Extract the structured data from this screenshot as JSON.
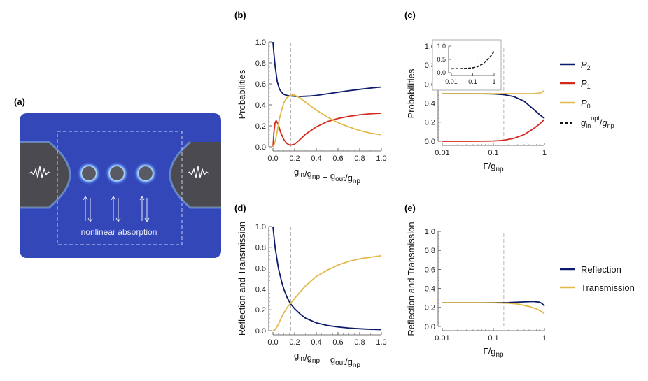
{
  "colors": {
    "p2": "#0b1a6b",
    "p1": "#d42a1e",
    "p0": "#e2b94a",
    "ref": "#0b1a6b",
    "trans": "#e2b94a",
    "schematic_bg": "#3347b8"
  },
  "panel_a": {
    "label": "(a)",
    "caption": "nonlinear absorption",
    "icons": [
      "left-wavepacket-icon",
      "right-wavepacket-icon",
      "emitter-icon",
      "up-down-arrows-icon"
    ]
  },
  "panel_labels": {
    "b": "(b)",
    "c": "(c)",
    "d": "(d)",
    "e": "(e)"
  },
  "chart_data": [
    {
      "id": "b",
      "type": "line",
      "xlabel": "g_in/g_np = g_out/g_np",
      "ylabel": "Probabilities",
      "xlim": [
        0,
        1
      ],
      "ylim": [
        0,
        1
      ],
      "xticks": [
        "0.0",
        "0.2",
        "0.4",
        "0.6",
        "0.8",
        "1.0"
      ],
      "yticks": [
        "0.0",
        "0.2",
        "0.4",
        "0.6",
        "0.8",
        "1.0"
      ],
      "vline": 0.165,
      "series": [
        {
          "name": "P2",
          "color": "#0b1a6b",
          "x": [
            0,
            0.01,
            0.02,
            0.04,
            0.06,
            0.08,
            0.1,
            0.13,
            0.16,
            0.2,
            0.25,
            0.3,
            0.35,
            0.4,
            0.5,
            0.6,
            0.7,
            0.8,
            0.9,
            1.0
          ],
          "y": [
            1.0,
            0.88,
            0.77,
            0.62,
            0.55,
            0.52,
            0.5,
            0.49,
            0.485,
            0.482,
            0.48,
            0.482,
            0.485,
            0.49,
            0.505,
            0.52,
            0.535,
            0.548,
            0.56,
            0.57
          ]
        },
        {
          "name": "P1",
          "color": "#d42a1e",
          "x": [
            0,
            0.01,
            0.02,
            0.03,
            0.05,
            0.07,
            0.1,
            0.13,
            0.16,
            0.2,
            0.25,
            0.3,
            0.4,
            0.5,
            0.6,
            0.7,
            0.8,
            0.9,
            1.0
          ],
          "y": [
            0,
            0.15,
            0.23,
            0.25,
            0.21,
            0.14,
            0.07,
            0.03,
            0.015,
            0.025,
            0.07,
            0.12,
            0.19,
            0.24,
            0.27,
            0.29,
            0.305,
            0.315,
            0.32
          ]
        },
        {
          "name": "P0",
          "color": "#e2b94a",
          "x": [
            0,
            0.01,
            0.02,
            0.04,
            0.06,
            0.08,
            0.1,
            0.13,
            0.16,
            0.18,
            0.2,
            0.25,
            0.3,
            0.4,
            0.5,
            0.6,
            0.7,
            0.8,
            0.9,
            1.0
          ],
          "y": [
            0,
            0.02,
            0.05,
            0.15,
            0.27,
            0.35,
            0.42,
            0.47,
            0.49,
            0.495,
            0.493,
            0.465,
            0.425,
            0.35,
            0.285,
            0.23,
            0.19,
            0.155,
            0.13,
            0.115
          ]
        }
      ]
    },
    {
      "id": "c",
      "type": "line",
      "xscale": "log",
      "xlabel": "Γ/g_np",
      "ylabel": "Probabilities",
      "xlim": [
        0.01,
        1
      ],
      "ylim": [
        0,
        1
      ],
      "xticks": [
        "0.01",
        "0.1",
        "1"
      ],
      "yticks": [
        "0.0",
        "0.2",
        "0.4",
        "0.6",
        "0.8",
        "1.0"
      ],
      "vline": 0.16,
      "series": [
        {
          "name": "P2",
          "color": "#0b1a6b",
          "x": [
            0.01,
            0.03,
            0.06,
            0.1,
            0.16,
            0.25,
            0.4,
            0.6,
            0.8,
            1.0
          ],
          "y": [
            0.5,
            0.5,
            0.499,
            0.497,
            0.49,
            0.47,
            0.42,
            0.34,
            0.28,
            0.24
          ]
        },
        {
          "name": "P1",
          "color": "#d42a1e",
          "x": [
            0.01,
            0.03,
            0.06,
            0.1,
            0.16,
            0.25,
            0.4,
            0.6,
            0.8,
            1.0
          ],
          "y": [
            0.0,
            0.0,
            0.001,
            0.003,
            0.01,
            0.03,
            0.07,
            0.13,
            0.18,
            0.23
          ]
        },
        {
          "name": "P0",
          "color": "#e2b94a",
          "x": [
            0.01,
            0.1,
            0.3,
            0.6,
            0.8,
            0.9,
            1.0
          ],
          "y": [
            0.5,
            0.5,
            0.5,
            0.5,
            0.505,
            0.515,
            0.535
          ]
        }
      ],
      "legend": [
        "P2",
        "P1",
        "P0",
        "g_in^opt/g_np"
      ],
      "inset": {
        "type": "line",
        "xscale": "log",
        "xlim": [
          0.01,
          1
        ],
        "ylim": [
          0,
          1
        ],
        "xticks": [
          "0.01",
          "0.1",
          "1"
        ],
        "yticks": [
          "0.0",
          "0.5",
          "1.0"
        ],
        "vline": 0.16,
        "hline": 0.15,
        "series": [
          {
            "name": "g_in^opt/g_np",
            "color": "#111111",
            "dashed": true,
            "x": [
              0.01,
              0.03,
              0.06,
              0.1,
              0.16,
              0.3,
              0.5,
              0.7,
              1.0
            ],
            "y": [
              0.15,
              0.155,
              0.165,
              0.185,
              0.22,
              0.33,
              0.5,
              0.63,
              0.8
            ]
          }
        ]
      }
    },
    {
      "id": "d",
      "type": "line",
      "xlabel": "g_in/g_np = g_out/g_np",
      "ylabel": "Reflection and Transmission",
      "xlim": [
        0,
        1
      ],
      "ylim": [
        0,
        1
      ],
      "xticks": [
        "0.0",
        "0.2",
        "0.4",
        "0.6",
        "0.8",
        "1.0"
      ],
      "yticks": [
        "0.0",
        "0.2",
        "0.4",
        "0.6",
        "0.8",
        "1.0"
      ],
      "vline": 0.165,
      "series": [
        {
          "name": "Reflection",
          "color": "#0b1a6b",
          "x": [
            0,
            0.02,
            0.05,
            0.08,
            0.1,
            0.13,
            0.16,
            0.2,
            0.25,
            0.3,
            0.4,
            0.5,
            0.6,
            0.7,
            0.8,
            0.9,
            1.0
          ],
          "y": [
            1.0,
            0.8,
            0.6,
            0.47,
            0.4,
            0.32,
            0.26,
            0.21,
            0.16,
            0.12,
            0.075,
            0.05,
            0.035,
            0.025,
            0.018,
            0.013,
            0.01
          ]
        },
        {
          "name": "Transmission",
          "color": "#e2b94a",
          "x": [
            0,
            0.02,
            0.05,
            0.08,
            0.1,
            0.13,
            0.16,
            0.2,
            0.25,
            0.3,
            0.4,
            0.5,
            0.6,
            0.7,
            0.8,
            0.9,
            1.0
          ],
          "y": [
            0,
            0.01,
            0.06,
            0.13,
            0.17,
            0.22,
            0.26,
            0.31,
            0.37,
            0.43,
            0.52,
            0.58,
            0.63,
            0.665,
            0.69,
            0.705,
            0.72
          ]
        }
      ]
    },
    {
      "id": "e",
      "type": "line",
      "xscale": "log",
      "xlabel": "Γ/g_np",
      "ylabel": "Reflection and Transmission",
      "xlim": [
        0.01,
        1
      ],
      "ylim": [
        0,
        1
      ],
      "xticks": [
        "0.01",
        "0.1",
        "1"
      ],
      "yticks": [
        "0.0",
        "0.2",
        "0.4",
        "0.6",
        "0.8",
        "1.0"
      ],
      "vline": 0.16,
      "series": [
        {
          "name": "Reflection",
          "color": "#0b1a6b",
          "x": [
            0.01,
            0.05,
            0.1,
            0.2,
            0.4,
            0.6,
            0.8,
            0.9,
            1.0
          ],
          "y": [
            0.25,
            0.25,
            0.251,
            0.252,
            0.258,
            0.262,
            0.255,
            0.24,
            0.215
          ]
        },
        {
          "name": "Transmission",
          "color": "#e2b94a",
          "x": [
            0.01,
            0.05,
            0.1,
            0.2,
            0.3,
            0.5,
            0.7,
            0.85,
            1.0
          ],
          "y": [
            0.25,
            0.25,
            0.249,
            0.245,
            0.235,
            0.21,
            0.185,
            0.16,
            0.135
          ]
        }
      ],
      "legend": [
        "Reflection",
        "Transmission"
      ]
    }
  ]
}
